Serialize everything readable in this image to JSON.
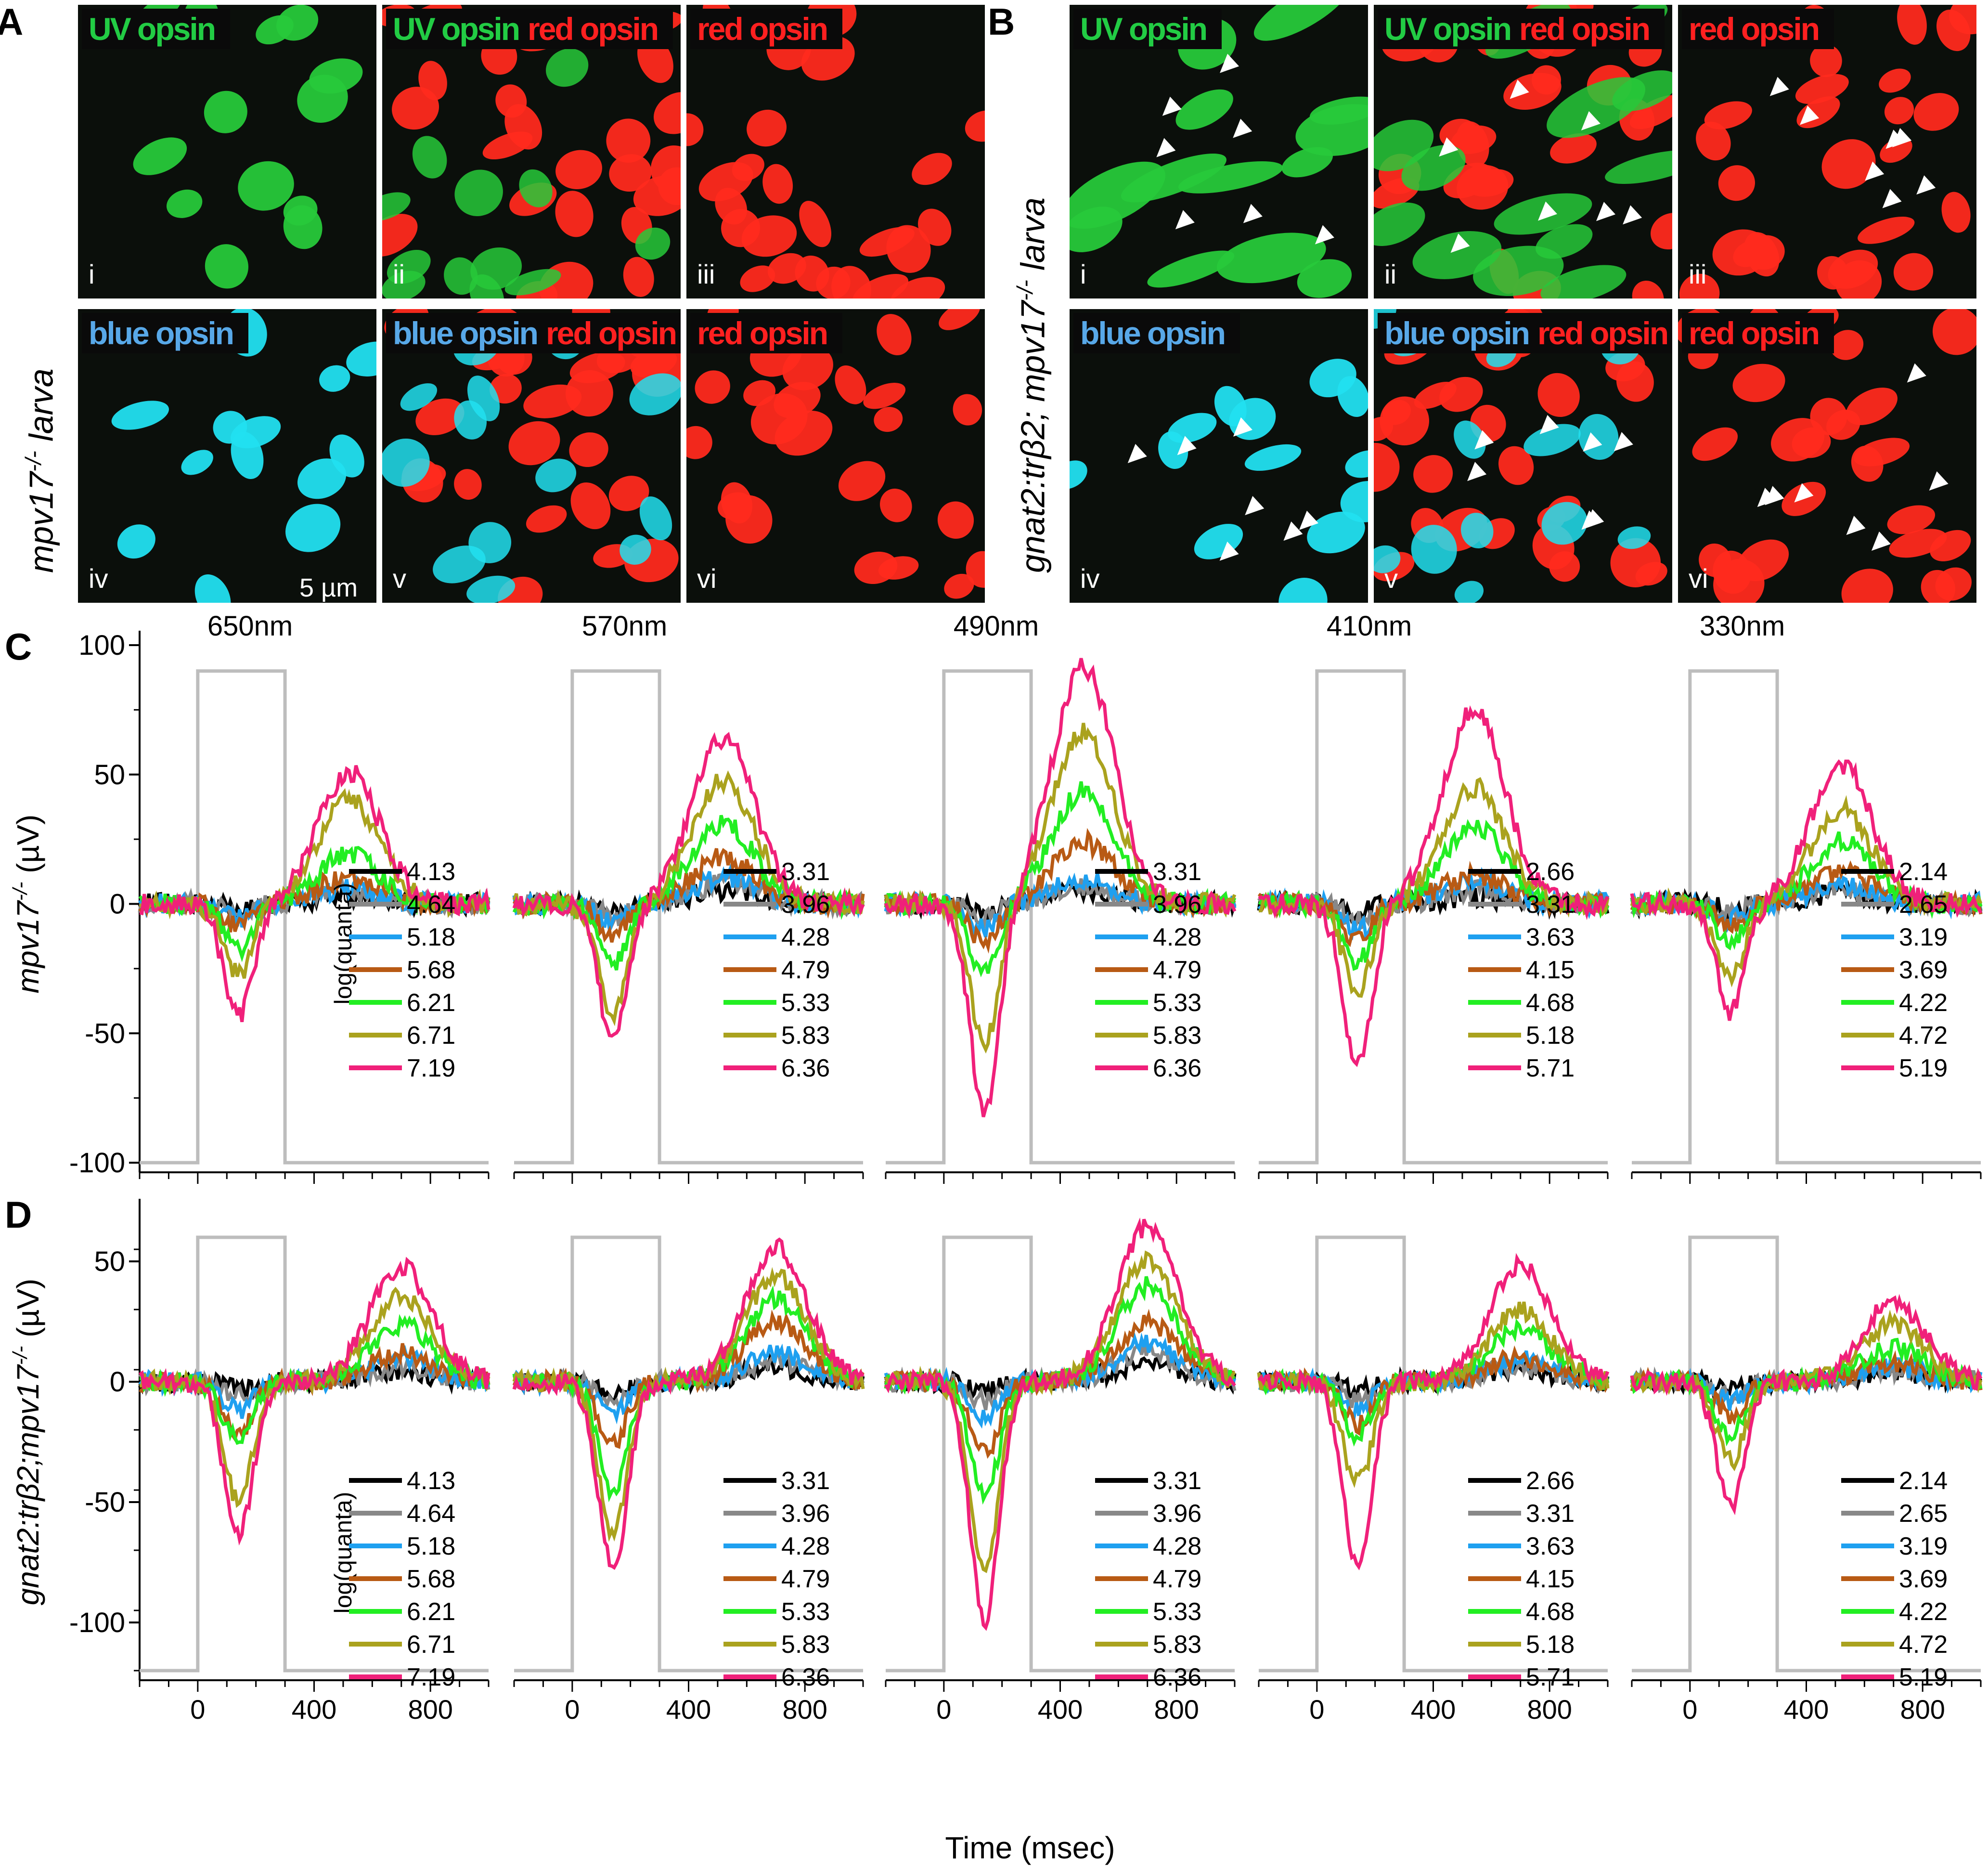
{
  "panels": {
    "A": {
      "label": "A",
      "side_label": "mpv17",
      "side_label_sup": "-/-",
      "side_label_tail": " larva",
      "tiles": [
        {
          "roman": "i",
          "tags": [
            {
              "text": "UV opsin",
              "color": "#22cc44"
            }
          ],
          "channel": "green"
        },
        {
          "roman": "ii",
          "tags": [
            {
              "text": "UV opsin",
              "color": "#22cc44"
            },
            {
              "text": "red opsin",
              "color": "#ff2020"
            }
          ],
          "channel": "green-red"
        },
        {
          "roman": "iii",
          "tags": [
            {
              "text": "red opsin",
              "color": "#ff2020"
            }
          ],
          "channel": "red"
        },
        {
          "roman": "iv",
          "tags": [
            {
              "text": "blue opsin",
              "color": "#58a8e8"
            }
          ],
          "channel": "cyan"
        },
        {
          "roman": "v",
          "tags": [
            {
              "text": "blue opsin",
              "color": "#58a8e8"
            },
            {
              "text": "red opsin",
              "color": "#ff2020"
            }
          ],
          "channel": "cyan-red"
        },
        {
          "roman": "vi",
          "tags": [
            {
              "text": "red opsin",
              "color": "#ff2020"
            }
          ],
          "channel": "red"
        }
      ],
      "scale_bar": "5 µm"
    },
    "B": {
      "label": "B",
      "side_label": "gnat2:trβ2; mpv17",
      "side_label_sup": "-/-",
      "side_label_tail": " larva",
      "tiles": [
        {
          "roman": "i",
          "tags": [
            {
              "text": "UV opsin",
              "color": "#22cc44"
            }
          ],
          "channel": "green"
        },
        {
          "roman": "ii",
          "tags": [
            {
              "text": "UV opsin",
              "color": "#22cc44"
            },
            {
              "text": "red opsin",
              "color": "#ff2020"
            }
          ],
          "channel": "green-red"
        },
        {
          "roman": "iii",
          "tags": [
            {
              "text": "red opsin",
              "color": "#ff2020"
            }
          ],
          "channel": "red"
        },
        {
          "roman": "iv",
          "tags": [
            {
              "text": "blue opsin",
              "color": "#58a8e8"
            }
          ],
          "channel": "cyan"
        },
        {
          "roman": "v",
          "tags": [
            {
              "text": "blue opsin",
              "color": "#58a8e8"
            },
            {
              "text": "red opsin",
              "color": "#ff2020"
            }
          ],
          "channel": "cyan-red"
        },
        {
          "roman": "vi",
          "tags": [
            {
              "text": "red opsin",
              "color": "#ff2020"
            }
          ],
          "channel": "red"
        }
      ]
    },
    "C": {
      "label": "C",
      "ylabel": "mpv17",
      "ylabel_sup": "-/-",
      "ylabel_tail": " (µV)"
    },
    "D": {
      "label": "D",
      "ylabel": "gnat2:trβ2;mpv17",
      "ylabel_sup": "-/-",
      "ylabel_tail": " (µV)"
    }
  },
  "xlabel": "Time (msec)",
  "legend_title": "log(quanta)",
  "chart_data": [
    {
      "type": "line",
      "panel": "C",
      "ylim": [
        -100,
        100
      ],
      "yticks": [
        -100,
        -50,
        0,
        50,
        100
      ],
      "xlim": [
        -200,
        1000
      ],
      "xticks": [
        0,
        400,
        800
      ],
      "stimulus_levels": [
        90,
        -100
      ],
      "series_colors": [
        "#000000",
        "#888888",
        "#1ea0f0",
        "#b85a14",
        "#22ee22",
        "#aaa21e",
        "#f0207a"
      ],
      "subplots": [
        {
          "wavelength": "650nm",
          "legend": [
            "4.13",
            "4.64",
            "5.18",
            "5.68",
            "6.21",
            "6.71",
            "7.19"
          ],
          "troughs": [
            -2,
            -4,
            -6,
            -9,
            -17,
            -27,
            -44
          ],
          "peaks": [
            3,
            5,
            6,
            10,
            19,
            40,
            51
          ]
        },
        {
          "wavelength": "570nm",
          "legend": [
            "3.31",
            "3.96",
            "4.28",
            "4.79",
            "5.33",
            "5.83",
            "6.36"
          ],
          "troughs": [
            -3,
            -5,
            -7,
            -12,
            -23,
            -42,
            -52
          ],
          "peaks": [
            5,
            8,
            10,
            18,
            31,
            48,
            64
          ]
        },
        {
          "wavelength": "490nm",
          "legend": [
            "3.31",
            "3.96",
            "4.28",
            "4.79",
            "5.33",
            "5.83",
            "6.36"
          ],
          "troughs": [
            -3,
            -6,
            -10,
            -15,
            -27,
            -55,
            -80
          ],
          "peaks": [
            5,
            7,
            9,
            24,
            44,
            66,
            92
          ]
        },
        {
          "wavelength": "410nm",
          "legend": [
            "2.66",
            "3.31",
            "3.63",
            "4.15",
            "4.68",
            "5.18",
            "5.71"
          ],
          "troughs": [
            -3,
            -6,
            -10,
            -14,
            -22,
            -33,
            -63
          ],
          "peaks": [
            3,
            5,
            9,
            11,
            30,
            45,
            75
          ]
        },
        {
          "wavelength": "330nm",
          "legend": [
            "2.14",
            "2.65",
            "3.19",
            "3.69",
            "4.22",
            "4.72",
            "5.19"
          ],
          "troughs": [
            -2,
            -4,
            -6,
            -9,
            -15,
            -27,
            -42
          ],
          "peaks": [
            4,
            6,
            8,
            12,
            24,
            36,
            54
          ]
        }
      ]
    },
    {
      "type": "line",
      "panel": "D",
      "ylim": [
        -120,
        70
      ],
      "yticks": [
        -100,
        -50,
        0,
        50
      ],
      "xlim": [
        -200,
        1000
      ],
      "xticks": [
        0,
        400,
        800
      ],
      "stimulus_levels": [
        60,
        -120
      ],
      "series_colors": [
        "#000000",
        "#888888",
        "#1ea0f0",
        "#b85a14",
        "#22ee22",
        "#aaa21e",
        "#f0207a"
      ],
      "subplots": [
        {
          "legend": [
            "4.13",
            "4.64",
            "5.18",
            "5.68",
            "6.21",
            "6.71",
            "7.19"
          ],
          "troughs": [
            -3,
            -6,
            -12,
            -22,
            -25,
            -50,
            -64
          ],
          "peaks": [
            4,
            6,
            10,
            12,
            24,
            36,
            48
          ]
        },
        {
          "legend": [
            "3.31",
            "3.96",
            "4.28",
            "4.79",
            "5.33",
            "5.83",
            "6.36"
          ],
          "troughs": [
            -6,
            -8,
            -14,
            -25,
            -45,
            -64,
            -78
          ],
          "peaks": [
            6,
            9,
            12,
            25,
            34,
            44,
            56
          ]
        },
        {
          "legend": [
            "3.31",
            "3.96",
            "4.28",
            "4.79",
            "5.33",
            "5.83",
            "6.36"
          ],
          "troughs": [
            -4,
            -8,
            -14,
            -30,
            -48,
            -76,
            -99
          ],
          "peaks": [
            8,
            12,
            16,
            24,
            40,
            50,
            64
          ]
        },
        {
          "legend": [
            "2.66",
            "3.31",
            "3.63",
            "4.15",
            "4.68",
            "5.18",
            "5.71"
          ],
          "troughs": [
            -4,
            -8,
            -12,
            -18,
            -22,
            -42,
            -77
          ],
          "peaks": [
            5,
            7,
            9,
            10,
            22,
            30,
            49
          ]
        },
        {
          "legend": [
            "2.14",
            "2.65",
            "3.19",
            "3.69",
            "4.22",
            "4.72",
            "5.19"
          ],
          "troughs": [
            -3,
            -6,
            -8,
            -14,
            -22,
            -33,
            -51
          ],
          "peaks": [
            4,
            5,
            6,
            8,
            14,
            24,
            33
          ]
        }
      ]
    }
  ]
}
